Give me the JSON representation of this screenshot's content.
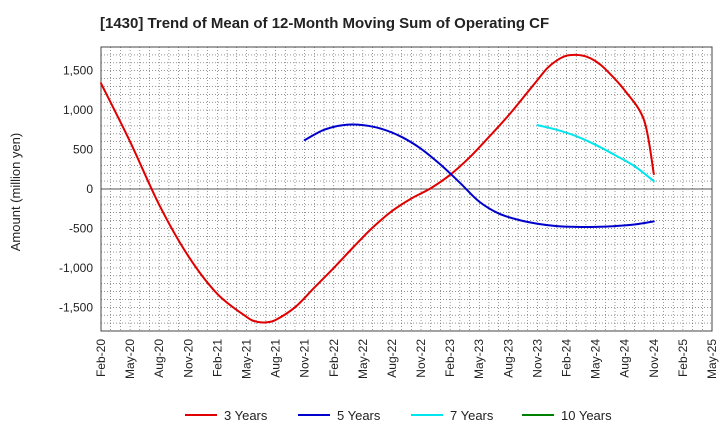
{
  "chart_data": {
    "type": "line",
    "title": "[1430]  Trend of Mean of 12-Month Moving Sum of Operating CF",
    "xlabel": "",
    "ylabel": "Amount (million yen)",
    "ylim": [
      -1800,
      1800
    ],
    "yticks": [
      1500,
      1000,
      500,
      0,
      -500,
      -1000,
      -1500
    ],
    "ytick_labels": [
      "1,500",
      "1,000",
      "500",
      "0",
      "-500",
      "-1,000",
      "-1,500"
    ],
    "x_start": "Feb-20",
    "x_months": 63,
    "x_tick_step": 3,
    "x_tick_labels": [
      "Feb-20",
      "May-20",
      "Aug-20",
      "Nov-20",
      "Feb-21",
      "May-21",
      "Aug-21",
      "Nov-21",
      "Feb-22",
      "May-22",
      "Aug-22",
      "Nov-22",
      "Feb-23",
      "May-23",
      "Aug-23",
      "Nov-23",
      "Feb-24",
      "May-24",
      "Aug-24",
      "Nov-24",
      "Feb-25",
      "May-25"
    ],
    "grid": true,
    "legend_position": "bottom",
    "series": [
      {
        "name": "3 Years",
        "color": "#e00000",
        "x": [
          0,
          3,
          6,
          9,
          12,
          15,
          16,
          17,
          18,
          20,
          22,
          24,
          26,
          28,
          30,
          32,
          34,
          36,
          38,
          40,
          42,
          44,
          45,
          46,
          47,
          48,
          49,
          50,
          51,
          52,
          54,
          56,
          57
        ],
        "values": [
          1340,
          600,
          -200,
          -850,
          -1330,
          -1620,
          -1680,
          -1690,
          -1660,
          -1500,
          -1250,
          -1000,
          -740,
          -490,
          -280,
          -120,
          10,
          180,
          400,
          660,
          930,
          1230,
          1380,
          1530,
          1630,
          1690,
          1700,
          1680,
          1620,
          1520,
          1250,
          870,
          190
        ]
      },
      {
        "name": "5 Years",
        "color": "#0000cc",
        "x": [
          21,
          23,
          25,
          27,
          29,
          31,
          33,
          35,
          37,
          39,
          41,
          43,
          45,
          47,
          49,
          51,
          53,
          55,
          57
        ],
        "values": [
          620,
          750,
          810,
          810,
          760,
          660,
          510,
          310,
          80,
          -160,
          -310,
          -390,
          -440,
          -470,
          -480,
          -480,
          -470,
          -450,
          -410
        ]
      },
      {
        "name": "7 Years",
        "color": "#00e5ee",
        "x": [
          45,
          47,
          49,
          51,
          53,
          55,
          57
        ],
        "values": [
          810,
          750,
          670,
          560,
          430,
          290,
          100
        ]
      },
      {
        "name": "10 Years",
        "color": "#008000",
        "x": [],
        "values": []
      }
    ]
  }
}
